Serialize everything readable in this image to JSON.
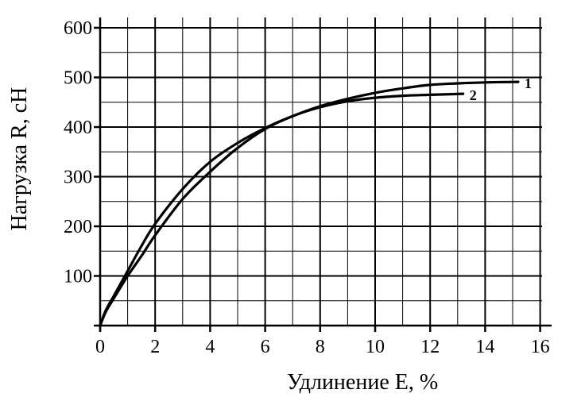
{
  "chart_data": {
    "type": "line",
    "xlabel": "Удлинение Е, %",
    "ylabel": "Нагрузка R, сН",
    "xlim": [
      0,
      16
    ],
    "ylim": [
      0,
      600
    ],
    "x_ticks": [
      0,
      2,
      4,
      6,
      8,
      10,
      12,
      14,
      16
    ],
    "y_ticks": [
      100,
      200,
      300,
      400,
      500,
      600
    ],
    "x_tick_labels": [
      "0",
      "2",
      "4",
      "6",
      "8",
      "10",
      "12",
      "14",
      "16"
    ],
    "y_tick_labels": [
      "100",
      "200",
      "300",
      "400",
      "500",
      "600"
    ],
    "x_minor_step": 1,
    "y_minor_step": 50,
    "grid": true,
    "series": [
      {
        "name": "1",
        "x": [
          0,
          0.2,
          0.5,
          1,
          1.5,
          2,
          3,
          4,
          5,
          6,
          7,
          8,
          9,
          10,
          11,
          12,
          13,
          14,
          15.2
        ],
        "y": [
          0,
          30,
          60,
          110,
          160,
          205,
          275,
          330,
          368,
          398,
          422,
          442,
          457,
          469,
          478,
          485,
          488,
          490,
          491
        ]
      },
      {
        "name": "2",
        "x": [
          0,
          0.2,
          0.5,
          1,
          1.5,
          2,
          3,
          4,
          5,
          6,
          7,
          8,
          9,
          10,
          11,
          12,
          13.2
        ],
        "y": [
          0,
          27,
          55,
          100,
          140,
          182,
          255,
          310,
          358,
          396,
          422,
          440,
          452,
          459,
          463,
          465,
          467
        ]
      }
    ]
  }
}
